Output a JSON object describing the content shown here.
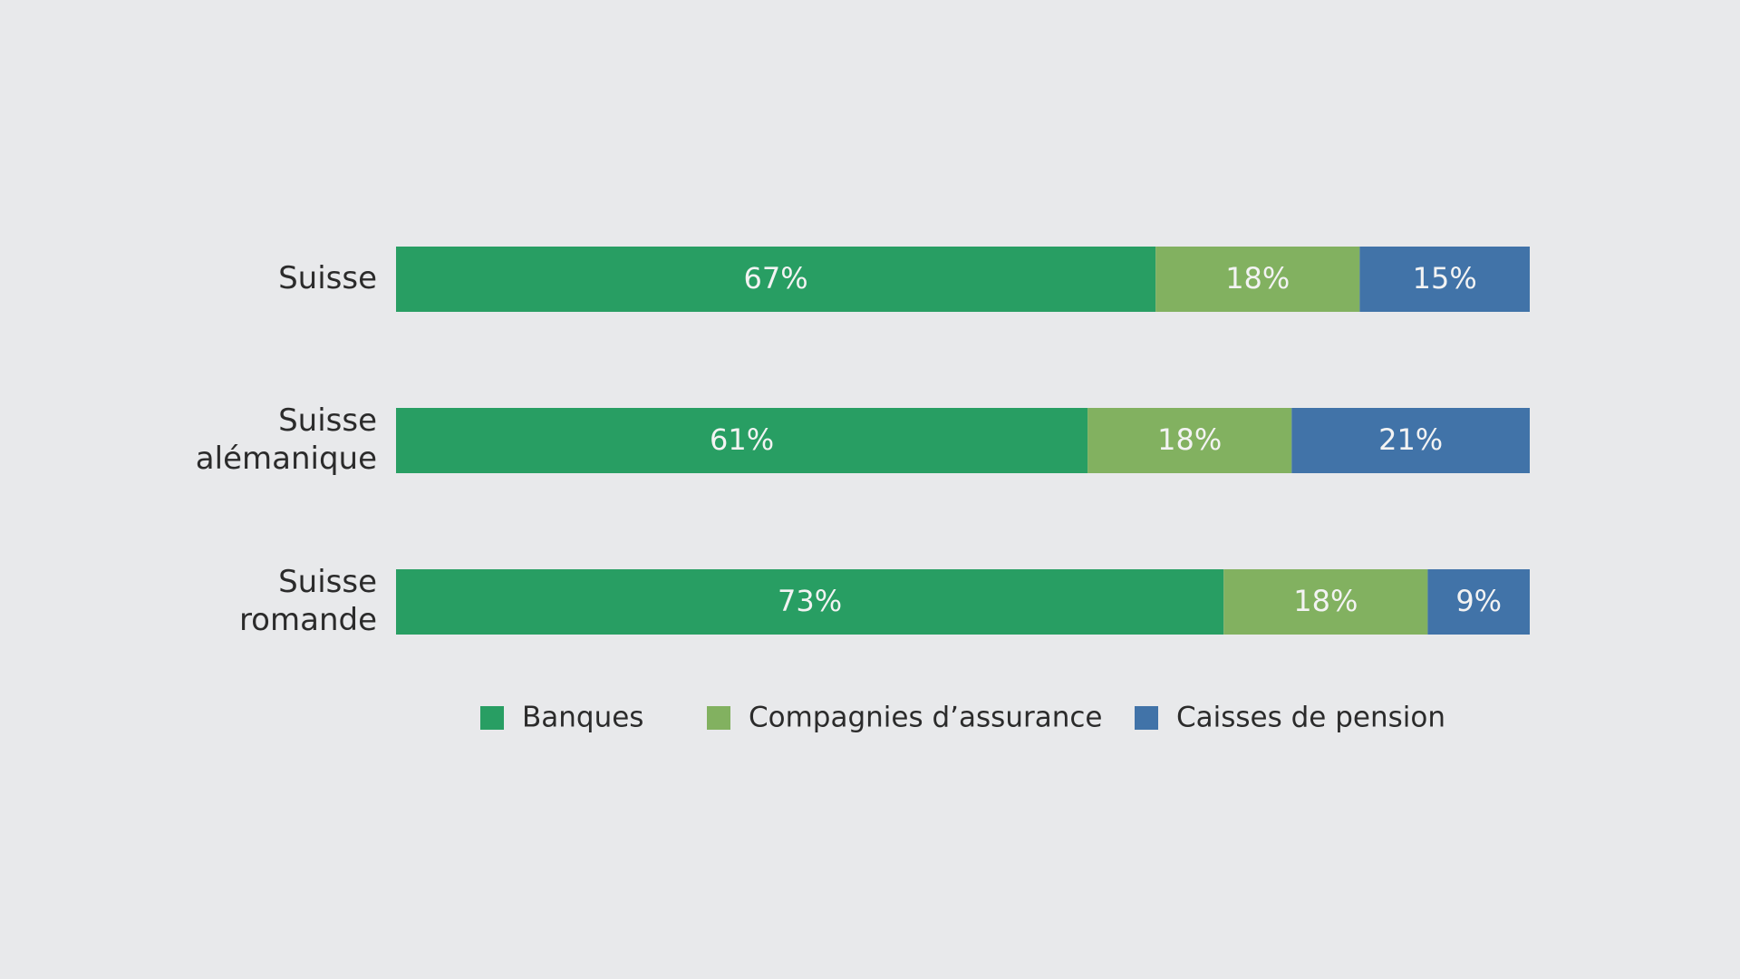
{
  "chart_data": {
    "type": "bar",
    "orientation": "horizontal",
    "stacked": true,
    "title": "",
    "xlabel": "",
    "ylabel": "",
    "xlim": [
      0,
      100
    ],
    "grid": false,
    "legend_position": "bottom",
    "categories": [
      [
        "Suisse"
      ],
      [
        "Suisse",
        "alémanique"
      ],
      [
        "Suisse",
        "romande"
      ]
    ],
    "series": [
      {
        "name": "Banques",
        "color": "#289e63",
        "values": [
          67,
          61,
          73
        ],
        "labels": [
          "67%",
          "61%",
          "73%"
        ]
      },
      {
        "name": "Compagnies d’assurance",
        "color": "#82b160",
        "values": [
          18,
          18,
          18
        ],
        "labels": [
          "18%",
          "18%",
          "18%"
        ]
      },
      {
        "name": "Caisses de pension",
        "color": "#4173a8",
        "values": [
          15,
          21,
          9
        ],
        "labels": [
          "15%",
          "21%",
          "9%"
        ]
      }
    ]
  }
}
